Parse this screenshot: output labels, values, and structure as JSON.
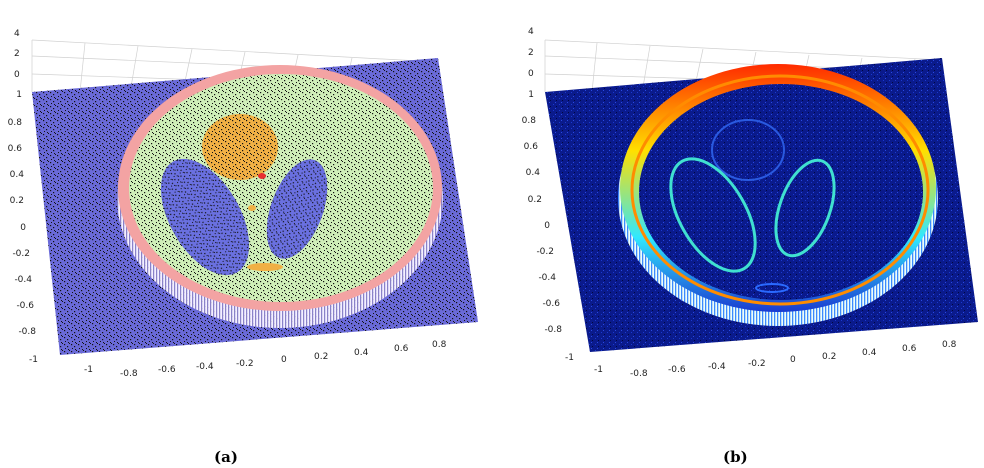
{
  "chart_data": [
    {
      "type": "surface",
      "panel_label": "(a)",
      "colormap": "pastel region colors over blue base with black noise speckle",
      "grid": true,
      "z_ticks": [
        "4",
        "2",
        "0"
      ],
      "y_ticks": [
        "1",
        "0.8",
        "0.6",
        "0.4",
        "0.2",
        "0",
        "-0.2",
        "-0.4",
        "-0.6",
        "-0.8",
        "-1"
      ],
      "x_ticks": [
        "-1",
        "-0.8",
        "-0.6",
        "-0.4",
        "-0.2",
        "0",
        "0.2",
        "0.4",
        "0.6",
        "0.8"
      ],
      "xlim": [
        -1,
        1
      ],
      "ylim": [
        -1,
        1
      ],
      "zlim": [
        0,
        4
      ],
      "colors": {
        "base": "#6a6ad8",
        "disc": "#cfeeb8",
        "rim": "#f3a3a3",
        "top_circle": "#f0b045",
        "ellipses": "#6a70e0",
        "small_feature": "#f0b045"
      }
    },
    {
      "type": "surface",
      "panel_label": "(b)",
      "colormap": "jet",
      "grid": true,
      "z_ticks": [
        "4",
        "2",
        "0"
      ],
      "y_ticks": [
        "1",
        "0.8",
        "0.6",
        "0.4",
        "0.2",
        "0",
        "-0.2",
        "-0.4",
        "-0.6",
        "-0.8",
        "-1"
      ],
      "x_ticks": [
        "-1",
        "-0.8",
        "-0.6",
        "-0.4",
        "-0.2",
        "0",
        "0.2",
        "0.4",
        "0.6",
        "0.8"
      ],
      "xlim": [
        -1,
        1
      ],
      "ylim": [
        -1,
        1
      ],
      "zlim": [
        0,
        4
      ],
      "colors": {
        "base": "#0a1a8c",
        "rim_high": "#ff2a00",
        "rim_mid": "#ffe000",
        "rim_low": "#00e0ff",
        "edge": "#40e0d0"
      }
    }
  ]
}
